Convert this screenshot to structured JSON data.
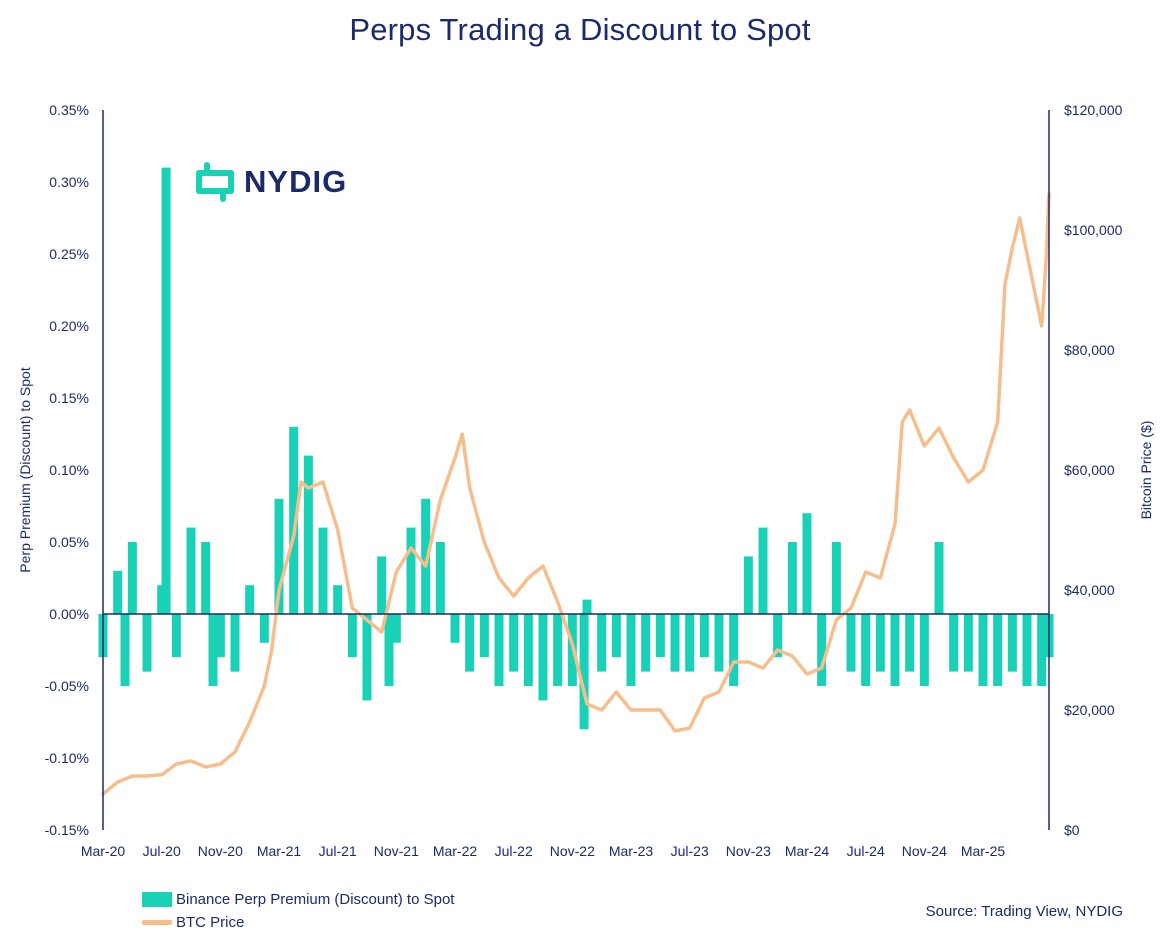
{
  "colors": {
    "bars": "#19d1b6",
    "line": "#f6be8c",
    "axis": "#1b2a6b"
  },
  "logo": {
    "text": "NYDIG",
    "icon": "nydig-logo-icon"
  },
  "legend": {
    "bars_label": "Binance Perp Premium (Discount) to Spot",
    "line_label": "BTC Price"
  },
  "source": "Source: Trading View, NYDIG",
  "chart_data": {
    "type": "bar",
    "title": "Perps Trading a Discount to Spot",
    "ylabel": "Perp Premium (Discount) to Spot",
    "y2label": "Bitcoin Price ($)",
    "ylim": [
      -0.15,
      0.35
    ],
    "y2lim": [
      0,
      120000
    ],
    "yticks": [
      "-0.15%",
      "-0.10%",
      "-0.05%",
      "0.00%",
      "0.05%",
      "0.10%",
      "0.15%",
      "0.20%",
      "0.25%",
      "0.30%",
      "0.35%"
    ],
    "y2ticks": [
      "$0",
      "$20,000",
      "$40,000",
      "$60,000",
      "$80,000",
      "$100,000",
      "$120,000"
    ],
    "xticks": [
      "Mar-20",
      "Jul-20",
      "Nov-20",
      "Mar-21",
      "Jul-21",
      "Nov-21",
      "Mar-22",
      "Jul-22",
      "Nov-22",
      "Mar-23",
      "Jul-23",
      "Nov-23",
      "Mar-24",
      "Jul-24",
      "Nov-24",
      "Mar-25"
    ],
    "x_range_months": [
      0,
      64.5
    ],
    "grid": false,
    "legend_position": "bottom-left",
    "series": [
      {
        "name": "Binance Perp Premium (Discount) to Spot",
        "type": "bar",
        "axis": "left",
        "points": [
          [
            0.0,
            -0.03
          ],
          [
            1.0,
            0.03
          ],
          [
            1.5,
            -0.05
          ],
          [
            2.0,
            0.05
          ],
          [
            3.0,
            -0.04
          ],
          [
            4.0,
            0.02
          ],
          [
            4.3,
            0.31
          ],
          [
            5.0,
            -0.03
          ],
          [
            6.0,
            0.06
          ],
          [
            7.0,
            0.05
          ],
          [
            7.5,
            -0.05
          ],
          [
            8.0,
            -0.03
          ],
          [
            9.0,
            -0.04
          ],
          [
            10.0,
            0.02
          ],
          [
            11.0,
            -0.02
          ],
          [
            12.0,
            0.08
          ],
          [
            13.0,
            0.13
          ],
          [
            14.0,
            0.11
          ],
          [
            15.0,
            0.06
          ],
          [
            16.0,
            0.02
          ],
          [
            17.0,
            -0.03
          ],
          [
            18.0,
            -0.06
          ],
          [
            19.0,
            0.04
          ],
          [
            19.5,
            -0.05
          ],
          [
            20.0,
            -0.02
          ],
          [
            21.0,
            0.06
          ],
          [
            22.0,
            0.08
          ],
          [
            23.0,
            0.05
          ],
          [
            24.0,
            -0.02
          ],
          [
            25.0,
            -0.04
          ],
          [
            26.0,
            -0.03
          ],
          [
            27.0,
            -0.05
          ],
          [
            28.0,
            -0.04
          ],
          [
            29.0,
            -0.05
          ],
          [
            30.0,
            -0.06
          ],
          [
            31.0,
            -0.05
          ],
          [
            32.0,
            -0.05
          ],
          [
            32.8,
            -0.08
          ],
          [
            33.0,
            0.01
          ],
          [
            34.0,
            -0.04
          ],
          [
            35.0,
            -0.03
          ],
          [
            36.0,
            -0.05
          ],
          [
            37.0,
            -0.04
          ],
          [
            38.0,
            -0.03
          ],
          [
            39.0,
            -0.04
          ],
          [
            40.0,
            -0.04
          ],
          [
            41.0,
            -0.03
          ],
          [
            42.0,
            -0.04
          ],
          [
            43.0,
            -0.05
          ],
          [
            44.0,
            0.04
          ],
          [
            45.0,
            0.06
          ],
          [
            46.0,
            -0.03
          ],
          [
            47.0,
            0.05
          ],
          [
            48.0,
            0.07
          ],
          [
            49.0,
            -0.05
          ],
          [
            50.0,
            0.05
          ],
          [
            51.0,
            -0.04
          ],
          [
            52.0,
            -0.05
          ],
          [
            53.0,
            -0.04
          ],
          [
            54.0,
            -0.05
          ],
          [
            55.0,
            -0.04
          ],
          [
            56.0,
            -0.05
          ],
          [
            57.0,
            0.05
          ],
          [
            58.0,
            -0.04
          ],
          [
            59.0,
            -0.04
          ],
          [
            60.0,
            -0.05
          ],
          [
            61.0,
            -0.05
          ],
          [
            62.0,
            -0.04
          ],
          [
            63.0,
            -0.05
          ],
          [
            64.0,
            -0.05
          ],
          [
            64.5,
            -0.03
          ]
        ]
      },
      {
        "name": "BTC Price",
        "type": "line",
        "axis": "right",
        "points": [
          [
            0.0,
            6000
          ],
          [
            1.0,
            8000
          ],
          [
            2.0,
            9000
          ],
          [
            3.0,
            9000
          ],
          [
            4.0,
            9200
          ],
          [
            5.0,
            11000
          ],
          [
            6.0,
            11500
          ],
          [
            7.0,
            10500
          ],
          [
            8.0,
            11000
          ],
          [
            9.0,
            13000
          ],
          [
            10.0,
            18000
          ],
          [
            11.0,
            24000
          ],
          [
            11.5,
            30000
          ],
          [
            12.0,
            40000
          ],
          [
            13.0,
            49000
          ],
          [
            13.5,
            58000
          ],
          [
            14.0,
            57000
          ],
          [
            15.0,
            58000
          ],
          [
            16.0,
            50000
          ],
          [
            17.0,
            37000
          ],
          [
            18.0,
            35000
          ],
          [
            19.0,
            33000
          ],
          [
            20.0,
            43000
          ],
          [
            21.0,
            47000
          ],
          [
            22.0,
            44000
          ],
          [
            23.0,
            55000
          ],
          [
            24.0,
            62000
          ],
          [
            24.5,
            66000
          ],
          [
            25.0,
            57000
          ],
          [
            26.0,
            48000
          ],
          [
            27.0,
            42000
          ],
          [
            28.0,
            39000
          ],
          [
            29.0,
            42000
          ],
          [
            30.0,
            44000
          ],
          [
            31.0,
            38000
          ],
          [
            32.0,
            31000
          ],
          [
            33.0,
            21000
          ],
          [
            34.0,
            20000
          ],
          [
            35.0,
            23000
          ],
          [
            36.0,
            20000
          ],
          [
            37.0,
            20000
          ],
          [
            38.0,
            20000
          ],
          [
            39.0,
            16500
          ],
          [
            40.0,
            17000
          ],
          [
            41.0,
            22000
          ],
          [
            42.0,
            23000
          ],
          [
            43.0,
            28000
          ],
          [
            44.0,
            28000
          ],
          [
            45.0,
            27000
          ],
          [
            46.0,
            30000
          ],
          [
            47.0,
            29000
          ],
          [
            48.0,
            26000
          ],
          [
            49.0,
            27000
          ],
          [
            50.0,
            35000
          ],
          [
            51.0,
            37000
          ],
          [
            52.0,
            43000
          ],
          [
            53.0,
            42000
          ],
          [
            54.0,
            51000
          ],
          [
            54.5,
            68000
          ],
          [
            55.0,
            70000
          ],
          [
            56.0,
            64000
          ],
          [
            57.0,
            67000
          ],
          [
            58.0,
            62000
          ],
          [
            59.0,
            58000
          ],
          [
            60.0,
            60000
          ],
          [
            61.0,
            68000
          ],
          [
            61.5,
            91000
          ],
          [
            62.0,
            97000
          ],
          [
            62.5,
            102000
          ],
          [
            63.0,
            96000
          ],
          [
            64.0,
            84000
          ],
          [
            64.3,
            95000
          ],
          [
            64.5,
            106000
          ]
        ]
      }
    ]
  }
}
